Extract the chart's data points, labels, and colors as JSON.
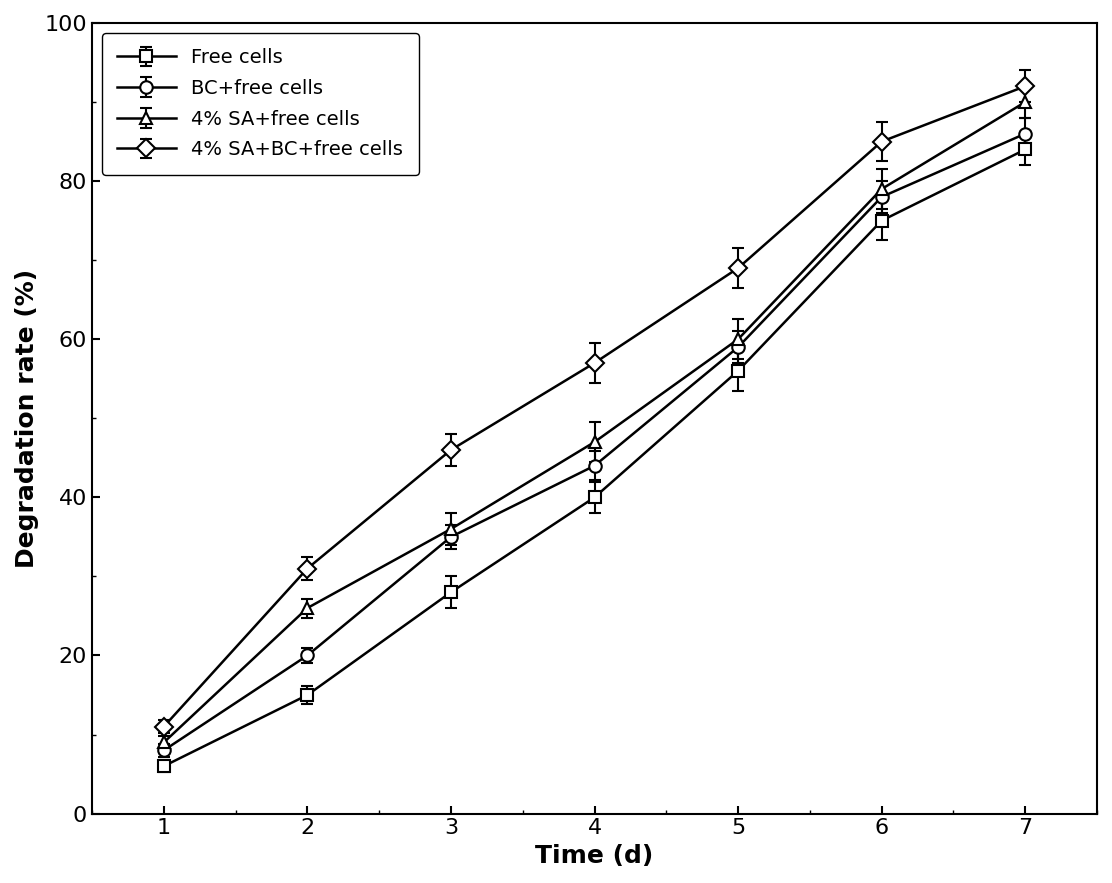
{
  "x": [
    1,
    2,
    3,
    4,
    5,
    6,
    7
  ],
  "series": {
    "Free cells": {
      "y": [
        6,
        15,
        28,
        40,
        56,
        75,
        84
      ],
      "yerr": [
        0.8,
        1.2,
        2.0,
        2.0,
        2.5,
        2.5,
        2.0
      ],
      "marker": "s",
      "markersize": 9,
      "label": "Free cells"
    },
    "BC+free cells": {
      "y": [
        8,
        20,
        35,
        44,
        59,
        78,
        86
      ],
      "yerr": [
        0.8,
        1.0,
        1.5,
        1.8,
        2.0,
        2.0,
        2.0
      ],
      "marker": "o",
      "markersize": 9,
      "label": "BC+free cells"
    },
    "4% SA+free cells": {
      "y": [
        9,
        26,
        36,
        47,
        60,
        79,
        90
      ],
      "yerr": [
        0.8,
        1.2,
        2.0,
        2.5,
        2.5,
        2.5,
        2.0
      ],
      "marker": "^",
      "markersize": 9,
      "label": "4% SA+free cells"
    },
    "4% SA+BC+free cells": {
      "y": [
        11,
        31,
        46,
        57,
        69,
        85,
        92
      ],
      "yerr": [
        0.8,
        1.5,
        2.0,
        2.5,
        2.5,
        2.5,
        2.0
      ],
      "marker": "D",
      "markersize": 9,
      "label": "4% SA+BC+free cells"
    }
  },
  "xlabel": "Time (d)",
  "ylabel": "Degradation rate (%)",
  "xlim": [
    0.5,
    7.5
  ],
  "ylim": [
    0,
    100
  ],
  "yticks": [
    0,
    20,
    40,
    60,
    80,
    100
  ],
  "xticks": [
    1,
    2,
    3,
    4,
    5,
    6,
    7
  ],
  "line_color": "#000000",
  "face_color": "#ffffff",
  "marker_face_color": "#ffffff",
  "legend_loc": "upper left",
  "xlabel_fontsize": 18,
  "ylabel_fontsize": 18,
  "tick_fontsize": 16,
  "legend_fontsize": 14
}
